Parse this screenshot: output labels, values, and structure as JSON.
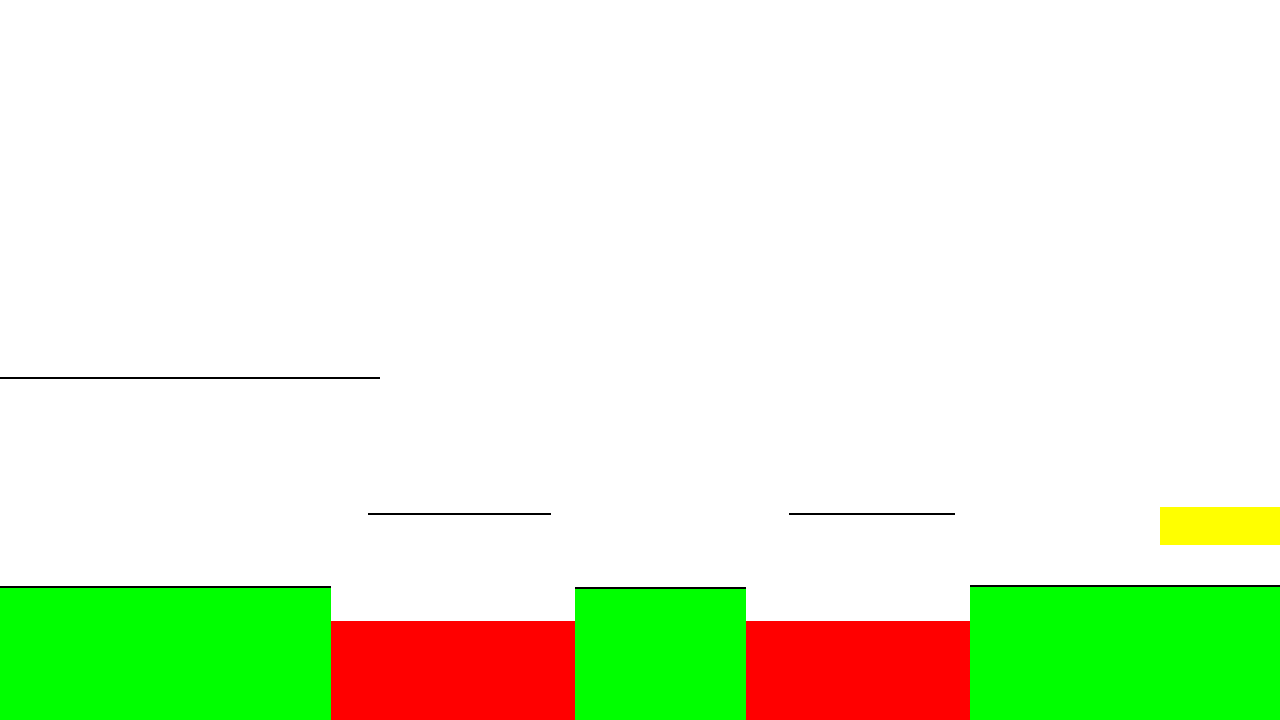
{
  "colors": {
    "background": "#ffffff",
    "platform_line": "#000000",
    "ground": "#00ff00",
    "hazard": "#ff0000",
    "goal": "#ffff00"
  },
  "elements": {
    "ledges": [
      "ledge-upper-left",
      "ledge-mid-left",
      "ledge-mid-right"
    ],
    "ground_blocks": [
      "ground-1",
      "ground-2",
      "ground-3"
    ],
    "hazard_blocks": [
      "hazard-1",
      "hazard-2"
    ],
    "goal": "goal-flag"
  }
}
